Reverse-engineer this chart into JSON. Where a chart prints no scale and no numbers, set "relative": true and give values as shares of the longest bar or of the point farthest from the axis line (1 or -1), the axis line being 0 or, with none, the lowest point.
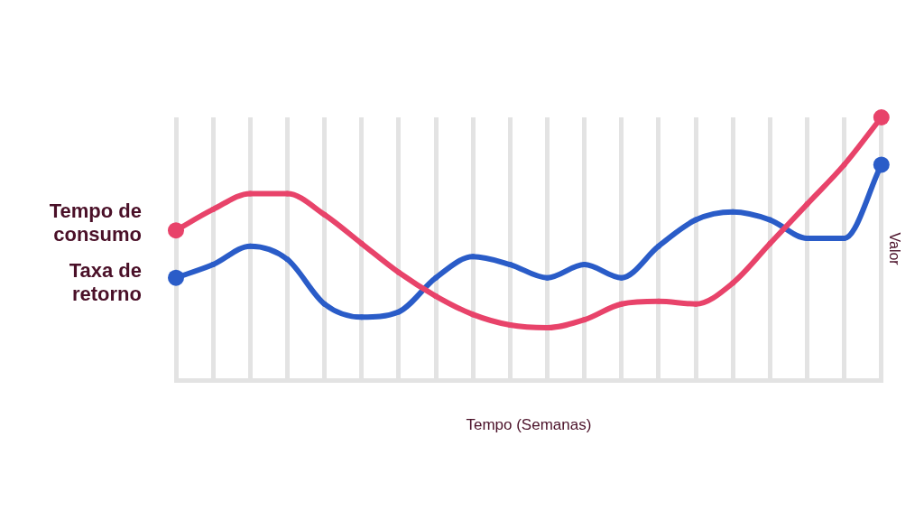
{
  "chart_data": {
    "type": "line",
    "relative": true,
    "xlabel": "Tempo (Semanas)",
    "ylabel": "Valor",
    "categories": [
      null,
      null,
      null,
      null,
      null,
      null,
      null,
      null,
      null,
      null,
      null,
      null,
      null,
      null,
      null,
      null,
      null,
      null,
      null,
      null
    ],
    "grid": "x",
    "legend": "left",
    "marker": "circle",
    "line_style": "solid",
    "series": [
      {
        "name": "Tempo de consumo",
        "color": "#e8436a",
        "values": [
          0.57,
          0.65,
          0.71,
          0.71,
          0.63,
          0.52,
          0.41,
          0.32,
          0.25,
          0.21,
          0.2,
          0.23,
          0.29,
          0.3,
          0.29,
          0.37,
          0.52,
          0.67,
          0.82,
          1
        ]
      },
      {
        "name": "Taxa de retorno",
        "color": "#2a5cc8",
        "values": [
          0.39,
          0.44,
          0.51,
          0.46,
          0.29,
          0.24,
          0.26,
          0.39,
          0.47,
          0.44,
          0.39,
          0.44,
          0.39,
          0.51,
          0.61,
          0.64,
          0.61,
          0.54,
          0.54,
          0.82
        ]
      }
    ]
  }
}
